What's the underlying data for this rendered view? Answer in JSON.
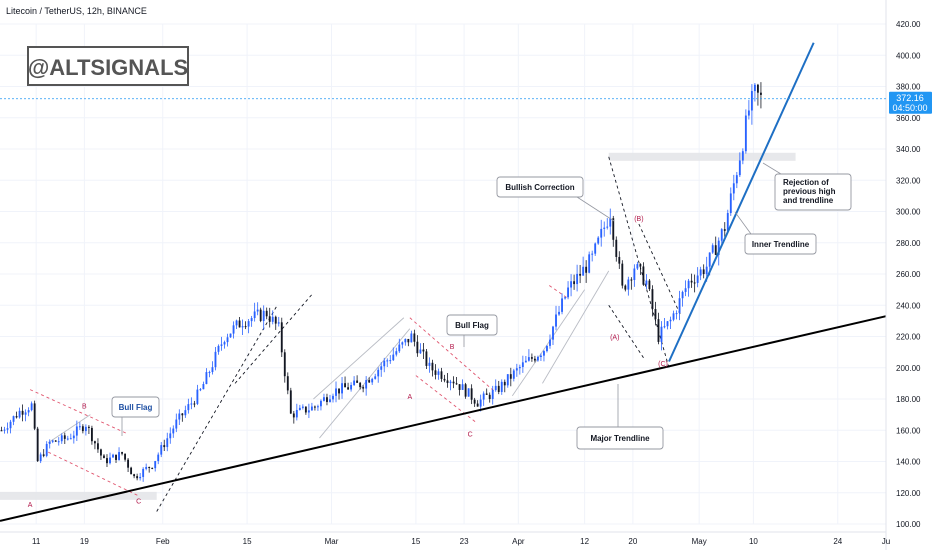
{
  "header": {
    "title": "Litecoin / TetherUS, 12h, BINANCE"
  },
  "watermark": "@ALTSIGNALS",
  "price_badge": {
    "price": "372.16",
    "countdown": "04:50:00",
    "color": "#2196f3"
  },
  "colors": {
    "up": "#2962ff",
    "down": "#131722",
    "major_trendline": "#000000",
    "inner_trendline": "#1e6fc4",
    "label_red": "#b2184a",
    "flag_red": "#e0566f",
    "guide_gray": "#b9bcc4",
    "zone_gray": "#e3e4e8"
  },
  "chart_data": {
    "type": "candlestick",
    "symbol": "LTCUSDT",
    "timeframe": "12h",
    "ylim": [
      100,
      420
    ],
    "y_ticks": [
      100,
      120,
      140,
      160,
      180,
      200,
      220,
      240,
      260,
      280,
      300,
      320,
      340,
      360,
      380,
      400,
      420
    ],
    "y_tick_labels": [
      "100.00",
      "120.00",
      "140.00",
      "160.00",
      "180.00",
      "200.00",
      "220.00",
      "240.00",
      "260.00",
      "280.00",
      "300.00",
      "320.00",
      "340.00",
      "360.00",
      "380.00",
      "400.00",
      "420.00"
    ],
    "x_axis": {
      "start_date": "2021-01-05",
      "end_date": "2021-06-01",
      "ticks": [
        {
          "date": "2021-01-11",
          "label": "11"
        },
        {
          "date": "2021-01-19",
          "label": "19"
        },
        {
          "date": "2021-02-01",
          "label": "Feb"
        },
        {
          "date": "2021-02-15",
          "label": "15"
        },
        {
          "date": "2021-03-01",
          "label": "Mar"
        },
        {
          "date": "2021-03-15",
          "label": "15"
        },
        {
          "date": "2021-03-23",
          "label": "23"
        },
        {
          "date": "2021-04-01",
          "label": "Apr"
        },
        {
          "date": "2021-04-12",
          "label": "12"
        },
        {
          "date": "2021-04-20",
          "label": "20"
        },
        {
          "date": "2021-05-01",
          "label": "May"
        },
        {
          "date": "2021-05-10",
          "label": "10"
        },
        {
          "date": "2021-05-24",
          "label": "24"
        },
        {
          "date": "2021-06-01",
          "label": "Ju"
        }
      ]
    },
    "candle_start": "2021-01-05",
    "close_path": [
      [
        "2021-01-05",
        160
      ],
      [
        "2021-01-08",
        172
      ],
      [
        "2021-01-10",
        176
      ],
      [
        "2021-01-11",
        140
      ],
      [
        "2021-01-13",
        152
      ],
      [
        "2021-01-16",
        155
      ],
      [
        "2021-01-19",
        164
      ],
      [
        "2021-01-22",
        140
      ],
      [
        "2021-01-25",
        145
      ],
      [
        "2021-01-27",
        130
      ],
      [
        "2021-01-30",
        138
      ],
      [
        "2021-02-03",
        165
      ],
      [
        "2021-02-07",
        185
      ],
      [
        "2021-02-11",
        220
      ],
      [
        "2021-02-14",
        230
      ],
      [
        "2021-02-18",
        235
      ],
      [
        "2021-02-20",
        225
      ],
      [
        "2021-02-22",
        170
      ],
      [
        "2021-02-26",
        175
      ],
      [
        "2021-03-01",
        185
      ],
      [
        "2021-03-06",
        190
      ],
      [
        "2021-03-10",
        205
      ],
      [
        "2021-03-14",
        220
      ],
      [
        "2021-03-17",
        200
      ],
      [
        "2021-03-21",
        192
      ],
      [
        "2021-03-25",
        178
      ],
      [
        "2021-03-28",
        185
      ],
      [
        "2021-04-01",
        200
      ],
      [
        "2021-04-05",
        212
      ],
      [
        "2021-04-09",
        250
      ],
      [
        "2021-04-13",
        270
      ],
      [
        "2021-04-16",
        300
      ],
      [
        "2021-04-18",
        250
      ],
      [
        "2021-04-20",
        265
      ],
      [
        "2021-04-22",
        255
      ],
      [
        "2021-04-24",
        220
      ],
      [
        "2021-04-26",
        230
      ],
      [
        "2021-04-29",
        255
      ],
      [
        "2021-05-02",
        265
      ],
      [
        "2021-05-05",
        290
      ],
      [
        "2021-05-08",
        345
      ],
      [
        "2021-05-09",
        365
      ],
      [
        "2021-05-10",
        375
      ],
      [
        "2021-05-11",
        372
      ]
    ],
    "current_price": 372.16,
    "annotations": {
      "callouts": [
        {
          "text": "Bull Flag",
          "style": "blue"
        },
        {
          "text": "Bull Flag"
        },
        {
          "text": "Bullish Correction"
        },
        {
          "text": "Rejection of previous high and trendline"
        },
        {
          "text": "Inner Trendline"
        },
        {
          "text": "Major Trendline"
        }
      ],
      "wave_labels": [
        {
          "text": "A",
          "date": "2021-01-10",
          "price": 111
        },
        {
          "text": "B",
          "date": "2021-01-19",
          "price": 174
        },
        {
          "text": "C",
          "date": "2021-01-28",
          "price": 113
        },
        {
          "text": "A",
          "date": "2021-03-14",
          "price": 180
        },
        {
          "text": "B",
          "date": "2021-03-21",
          "price": 212
        },
        {
          "text": "C",
          "date": "2021-03-24",
          "price": 156
        },
        {
          "text": "(A)",
          "date": "2021-04-17",
          "price": 218
        },
        {
          "text": "(B)",
          "date": "2021-04-21",
          "price": 294
        },
        {
          "text": "(C)",
          "date": "2021-04-25",
          "price": 201
        }
      ],
      "major_trendline": {
        "from": [
          "2021-01-05",
          102
        ],
        "to": [
          "2021-06-01",
          233
        ]
      },
      "inner_trendline": {
        "from": [
          "2021-04-26",
          204
        ],
        "to": [
          "2021-05-20",
          408
        ]
      },
      "support_zones": [
        {
          "from": "2021-01-05",
          "to": "2021-01-31",
          "price": 118
        },
        {
          "from": "2021-04-16",
          "to": "2021-05-17",
          "price": 335
        }
      ]
    }
  }
}
